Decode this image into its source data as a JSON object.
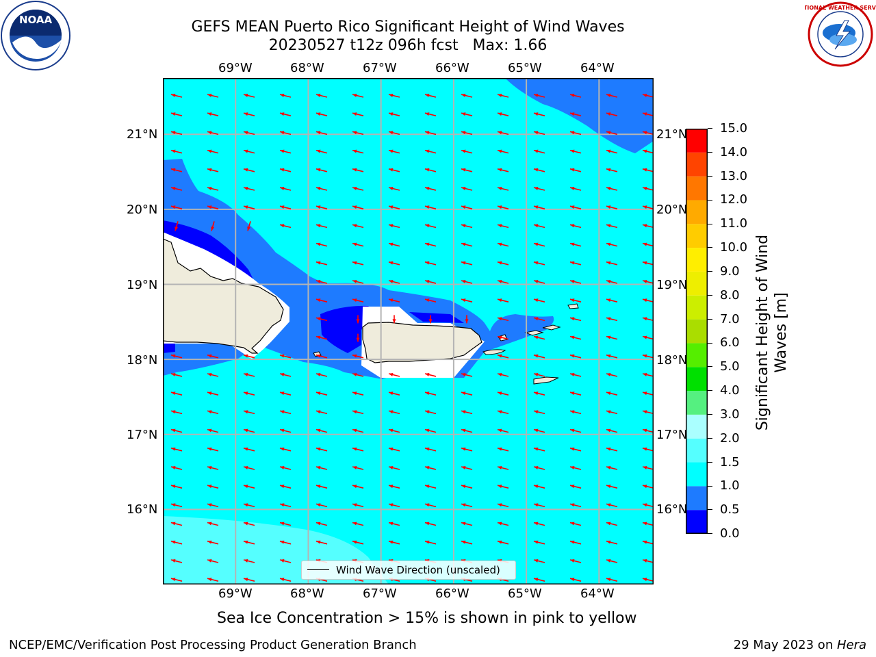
{
  "header": {
    "title_line1": "GEFS MEAN Puerto Rico Significant Height of Wind Waves",
    "title_line2": "20230527 t12z 096h fcst   Max: 1.66"
  },
  "logos": {
    "left": {
      "name": "noaa-logo",
      "text": "NOAA"
    },
    "right": {
      "name": "nws-logo",
      "text": "NATIONAL WEATHER SERVICE"
    }
  },
  "map": {
    "lon_ticks": [
      "69°W",
      "68°W",
      "67°W",
      "66°W",
      "65°W",
      "64°W"
    ],
    "lat_ticks": [
      "21°N",
      "20°N",
      "19°N",
      "18°N",
      "17°N",
      "16°N"
    ],
    "lon_values": [
      -69,
      -68,
      -67,
      -66,
      -65,
      -64
    ],
    "lat_values": [
      21,
      20,
      19,
      18,
      17,
      16
    ],
    "lon_range": [
      -70,
      -63.25
    ],
    "lat_range": [
      15.0,
      21.75
    ],
    "arrow_color": "#ff0000",
    "land_color": "#efecdc",
    "gridlines": true
  },
  "legend": {
    "label": "Wind Wave Direction (unscaled)"
  },
  "colorbar": {
    "label_line1": "Significant Height of Wind",
    "label_line2": "Waves [m]",
    "ticks": [
      "0.0",
      "0.5",
      "1.0",
      "1.5",
      "2.0",
      "3.0",
      "4.0",
      "5.0",
      "6.0",
      "7.0",
      "8.0",
      "9.0",
      "10.0",
      "11.0",
      "12.0",
      "13.0",
      "14.0",
      "15.0"
    ],
    "colors": [
      "#0000ff",
      "#1e7bff",
      "#00ffff",
      "#55ffff",
      "#aaffff",
      "#55f080",
      "#00e000",
      "#55ee00",
      "#aadd00",
      "#ccee00",
      "#eeee00",
      "#ffee00",
      "#ffcc00",
      "#ffaa00",
      "#ff7700",
      "#ff4400",
      "#ff0000"
    ]
  },
  "caption": "Sea Ice Concentration > 15% is shown in pink to yellow",
  "footer": {
    "left": "NCEP/EMC/Verification Post Processing Product Generation Branch",
    "right_prefix": "29 May 2023 on ",
    "right_host": "Hera"
  }
}
